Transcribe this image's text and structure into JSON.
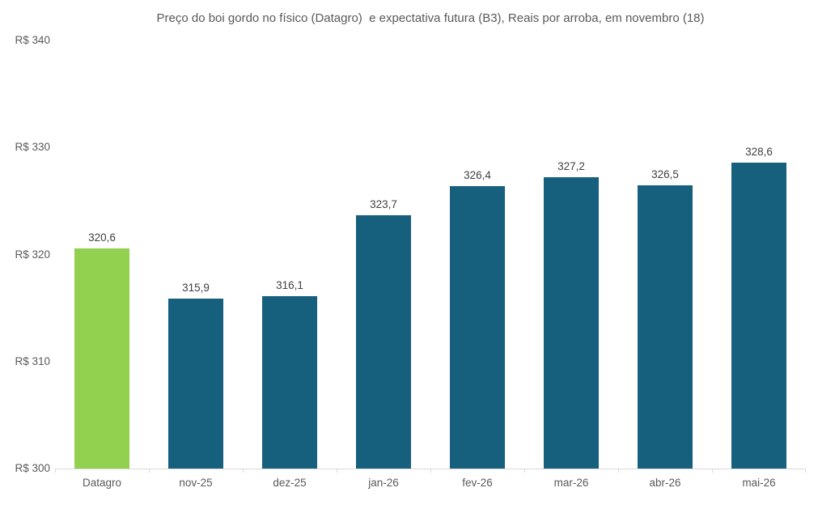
{
  "chart_data": {
    "type": "bar",
    "title": "Preço do boi gordo no físico (Datagro)  e expectativa futura (B3), Reais por arroba, em novembro (18)",
    "categories": [
      "Datagro",
      "nov-25",
      "dez-25",
      "jan-26",
      "fev-26",
      "mar-26",
      "abr-26",
      "mai-26"
    ],
    "values": [
      320.6,
      315.9,
      316.1,
      323.7,
      326.4,
      327.2,
      326.5,
      328.6
    ],
    "value_labels": [
      "320,6",
      "315,9",
      "316,1",
      "323,7",
      "326,4",
      "327,2",
      "326,5",
      "328,6"
    ],
    "bar_colors": [
      "#92d050",
      "#165f7d",
      "#165f7d",
      "#165f7d",
      "#165f7d",
      "#165f7d",
      "#165f7d",
      "#165f7d"
    ],
    "xlabel": "",
    "ylabel": "",
    "ylim": [
      300,
      340
    ],
    "grid": false,
    "legend": false,
    "y_axis_ticks": [
      {
        "label": "R$ 340",
        "value": 340
      },
      {
        "label": "R$ 330",
        "value": 330
      },
      {
        "label": "R$ 320",
        "value": 320
      },
      {
        "label": "R$ 310",
        "value": 310
      },
      {
        "label": "R$ 300",
        "value": 300
      }
    ]
  },
  "colors": {
    "highlight_bar": "#92d050",
    "series_bar": "#165f7d",
    "axis_line": "#d9d9d9",
    "axis_text": "#595959",
    "data_label_text": "#404040",
    "background": "#ffffff"
  }
}
